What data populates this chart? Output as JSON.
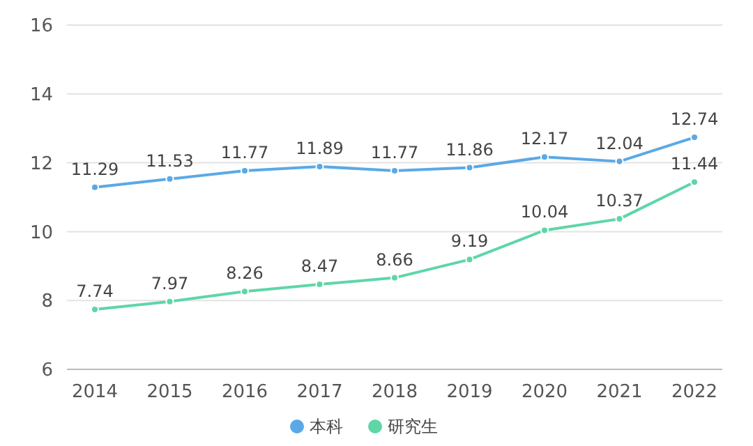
{
  "chart_data": {
    "type": "line",
    "categories": [
      "2014",
      "2015",
      "2016",
      "2017",
      "2018",
      "2019",
      "2020",
      "2021",
      "2022"
    ],
    "series": [
      {
        "name": "本科",
        "color": "#5aa9e6",
        "values": [
          11.29,
          11.53,
          11.77,
          11.89,
          11.77,
          11.86,
          12.17,
          12.04,
          12.74
        ]
      },
      {
        "name": "研究生",
        "color": "#5ed6a8",
        "values": [
          7.74,
          7.97,
          8.26,
          8.47,
          8.66,
          9.19,
          10.04,
          10.37,
          11.44
        ]
      }
    ],
    "ylim": [
      6,
      16
    ],
    "yticks": [
      6,
      8,
      10,
      12,
      14,
      16
    ],
    "grid": "y",
    "legend": "bottom",
    "marker": "circle",
    "line_style": "solid",
    "data_labels": true
  }
}
